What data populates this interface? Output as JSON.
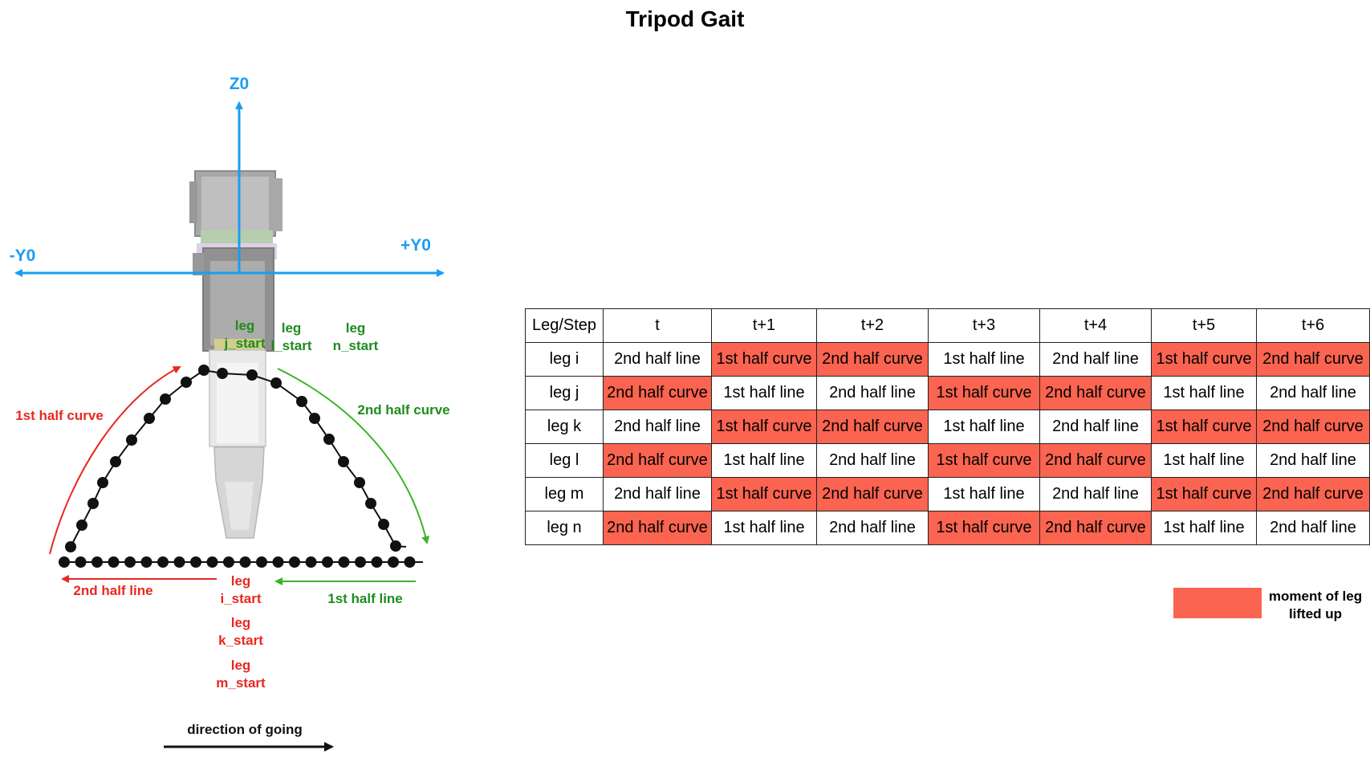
{
  "title": "Tripod Gait",
  "axes": {
    "z": "Z0",
    "y_pos": "+Y0",
    "y_neg": "-Y0"
  },
  "trajectory_labels": {
    "first_half_curve": "1st half curve",
    "second_half_curve": "2nd half curve",
    "first_half_line": "1st half line",
    "second_half_line": "2nd half line"
  },
  "start_labels": {
    "j_start": [
      "leg",
      "j_start"
    ],
    "l_start": [
      "leg",
      "l_start"
    ],
    "n_start": [
      "leg",
      "n_start"
    ],
    "i_start": [
      "leg",
      "i_start"
    ],
    "k_start": [
      "leg",
      "k_start"
    ],
    "m_start": [
      "leg",
      "m_start"
    ]
  },
  "direction_label": "direction of going",
  "table": {
    "headers": [
      "Leg/Step",
      "t",
      "t+1",
      "t+2",
      "t+3",
      "t+4",
      "t+5",
      "t+6"
    ],
    "rows": [
      {
        "leg": "leg i",
        "cells": [
          "2nd half line",
          "1st half curve",
          "2nd half curve",
          "1st half line",
          "2nd half line",
          "1st half curve",
          "2nd half curve"
        ],
        "lifted": [
          false,
          true,
          true,
          false,
          false,
          true,
          true
        ]
      },
      {
        "leg": "leg j",
        "cells": [
          "2nd half curve",
          "1st half line",
          "2nd half line",
          "1st half curve",
          "2nd half curve",
          "1st half line",
          "2nd half line"
        ],
        "lifted": [
          true,
          false,
          false,
          true,
          true,
          false,
          false
        ]
      },
      {
        "leg": "leg k",
        "cells": [
          "2nd half line",
          "1st half curve",
          "2nd half curve",
          "1st half line",
          "2nd half line",
          "1st half curve",
          "2nd half curve"
        ],
        "lifted": [
          false,
          true,
          true,
          false,
          false,
          true,
          true
        ]
      },
      {
        "leg": "leg l",
        "cells": [
          "2nd half curve",
          "1st half line",
          "2nd half line",
          "1st half curve",
          "2nd half curve",
          "1st half line",
          "2nd half line"
        ],
        "lifted": [
          true,
          false,
          false,
          true,
          true,
          false,
          false
        ]
      },
      {
        "leg": "leg m",
        "cells": [
          "2nd half line",
          "1st half curve",
          "2nd half curve",
          "1st half line",
          "2nd half line",
          "1st half curve",
          "2nd half curve"
        ],
        "lifted": [
          false,
          true,
          true,
          false,
          false,
          true,
          true
        ]
      },
      {
        "leg": "leg n",
        "cells": [
          "2nd half curve",
          "1st half line",
          "2nd half line",
          "1st half curve",
          "2nd half curve",
          "1st half line",
          "2nd half line"
        ],
        "lifted": [
          true,
          false,
          false,
          true,
          true,
          false,
          false
        ]
      }
    ]
  },
  "legend": {
    "text": "moment of leg lifted up",
    "color": "#fa6450"
  },
  "colors": {
    "axis": "#1a9df2",
    "red": "#e8281e",
    "green": "#1e8c1e",
    "green_arrow": "#3cb428",
    "lifted": "#fa6450"
  }
}
